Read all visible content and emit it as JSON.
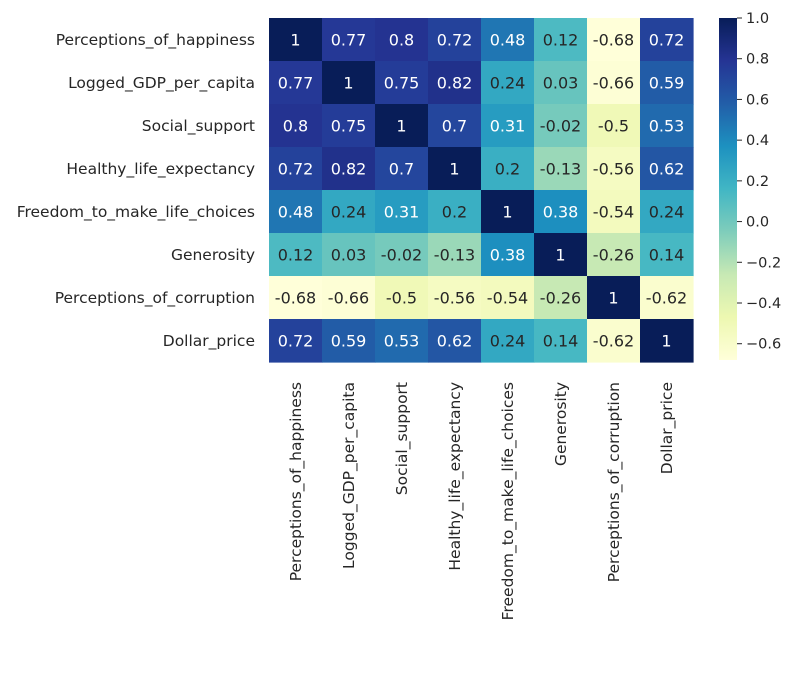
{
  "chart_data": {
    "type": "heatmap",
    "title": "",
    "xlabel": "",
    "ylabel": "",
    "row_labels": [
      "Perceptions_of_happiness",
      "Logged_GDP_per_capita",
      "Social_support",
      "Healthy_life_expectancy",
      "Freedom_to_make_life_choices",
      "Generosity",
      "Perceptions_of_corruption",
      "Dollar_price"
    ],
    "col_labels": [
      "Perceptions_of_happiness",
      "Logged_GDP_per_capita",
      "Social_support",
      "Healthy_life_expectancy",
      "Freedom_to_make_life_choices",
      "Generosity",
      "Perceptions_of_corruption",
      "Dollar_price"
    ],
    "cell_labels": [
      [
        "1",
        "0.77",
        "0.8",
        "0.72",
        "0.48",
        "0.12",
        "-0.68",
        "0.72"
      ],
      [
        "0.77",
        "1",
        "0.75",
        "0.82",
        "0.24",
        "0.03",
        "-0.66",
        "0.59"
      ],
      [
        "0.8",
        "0.75",
        "1",
        "0.7",
        "0.31",
        "-0.02",
        "-0.5",
        "0.53"
      ],
      [
        "0.72",
        "0.82",
        "0.7",
        "1",
        "0.2",
        "-0.13",
        "-0.56",
        "0.62"
      ],
      [
        "0.48",
        "0.24",
        "0.31",
        "0.2",
        "1",
        "0.38",
        "-0.54",
        "0.24"
      ],
      [
        "0.12",
        "0.03",
        "-0.02",
        "-0.13",
        "0.38",
        "1",
        "-0.26",
        "0.14"
      ],
      [
        "-0.68",
        "-0.66",
        "-0.5",
        "-0.56",
        "-0.54",
        "-0.26",
        "1",
        "-0.62"
      ],
      [
        "0.72",
        "0.59",
        "0.53",
        "0.62",
        "0.24",
        "0.14",
        "-0.62",
        "1"
      ]
    ],
    "colormap": "YlGnBu",
    "colormap_stops": [
      "#ffffd9",
      "#edf8b1",
      "#c7e9b4",
      "#7fcdbb",
      "#41b6c4",
      "#1d91c0",
      "#225ea8",
      "#253494",
      "#081d58"
    ],
    "vmin": -0.68,
    "vmax": 1.0,
    "colorbar_ticks": [
      "1.0",
      "0.8",
      "0.6",
      "0.4",
      "0.2",
      "0.0",
      "−0.2",
      "−0.4",
      "−0.6"
    ],
    "colorbar_tick_values": [
      1.0,
      0.8,
      0.6,
      0.4,
      0.2,
      0.0,
      -0.2,
      -0.4,
      -0.6
    ],
    "text_light": "#ffffff",
    "text_dark": "#262626",
    "grid": false
  }
}
